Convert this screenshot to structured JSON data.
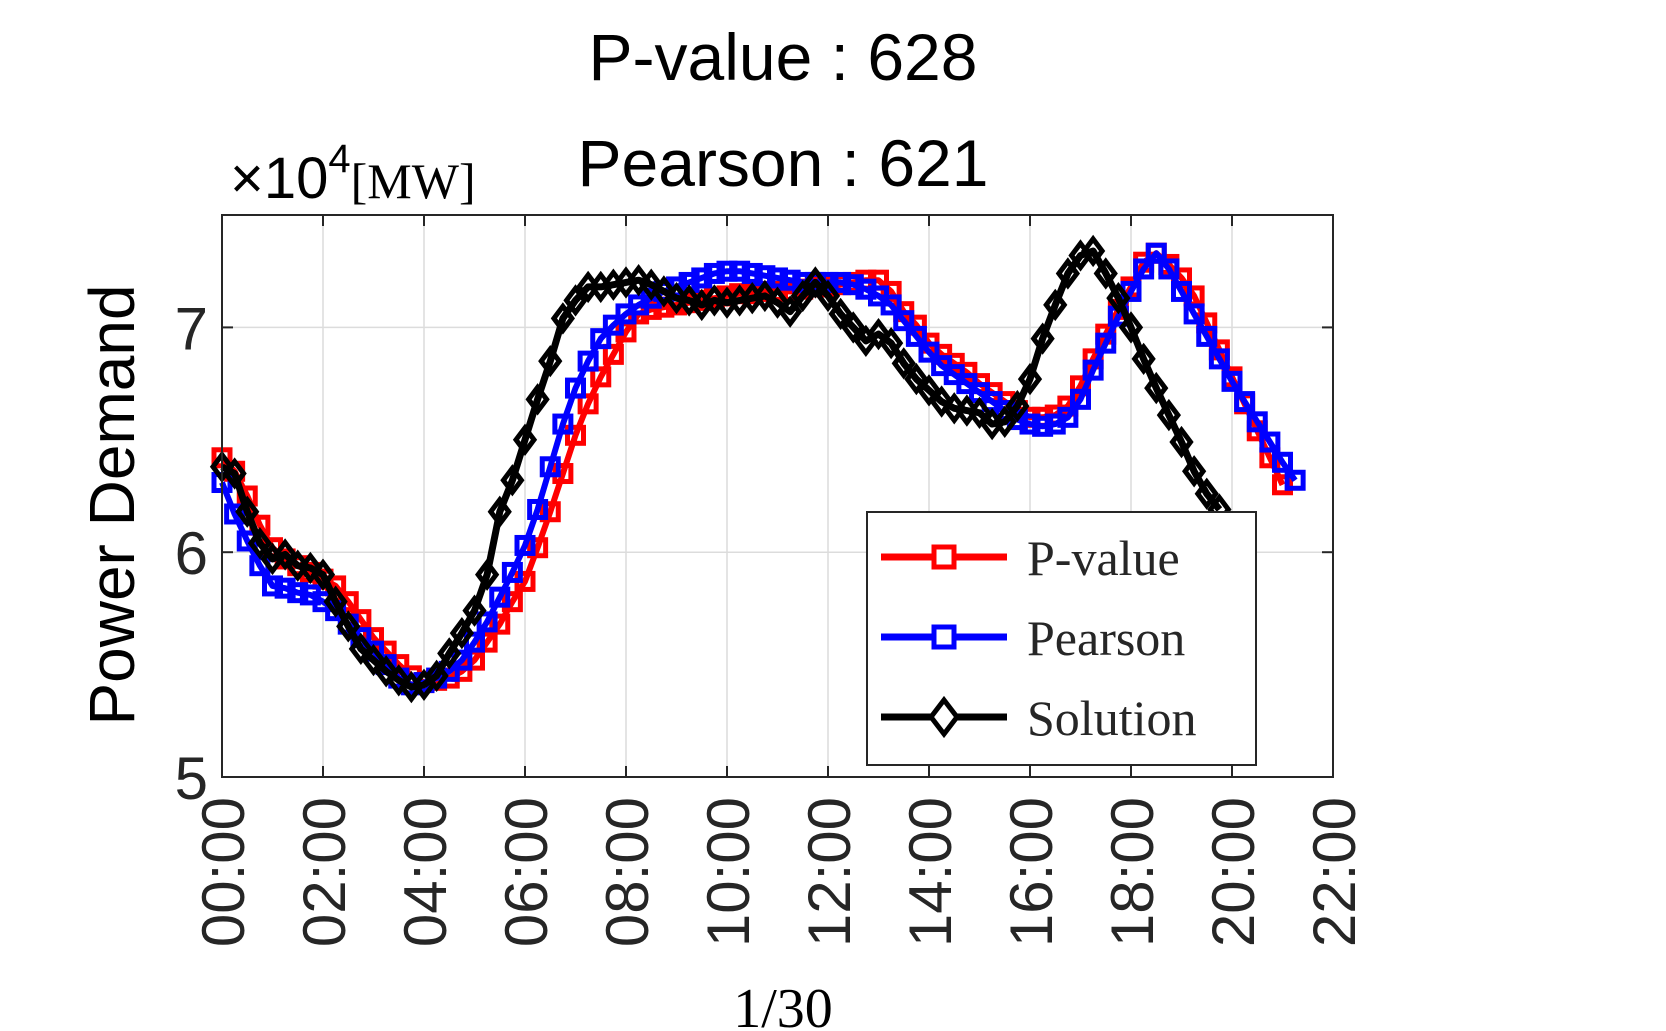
{
  "chart_data": {
    "type": "line",
    "title_lines": [
      "P-value : 628",
      "Pearson : 621"
    ],
    "ylabel": "Power Demand",
    "y_multiplier": "×10",
    "y_exponent": "4",
    "y_unit": "[MW]",
    "xlabel": "1/30",
    "ylim": [
      5,
      7.5
    ],
    "yticks": [
      5,
      6,
      7
    ],
    "xlim": [
      0,
      22
    ],
    "xticks": [
      0,
      2,
      4,
      6,
      8,
      10,
      12,
      14,
      16,
      18,
      20,
      22
    ],
    "xtick_labels": [
      "00:00",
      "02:00",
      "04:00",
      "06:00",
      "08:00",
      "10:00",
      "12:00",
      "14:00",
      "16:00",
      "18:00",
      "20:00",
      "22:00"
    ],
    "grid": true,
    "legend_position": "lower-right",
    "step_hours": 0.25,
    "series": [
      {
        "name": "P-value",
        "color": "#ff0000",
        "marker": "square",
        "values": [
          6.42,
          6.36,
          6.25,
          6.12,
          6.02,
          5.97,
          5.94,
          5.91,
          5.88,
          5.85,
          5.78,
          5.7,
          5.62,
          5.56,
          5.5,
          5.45,
          5.42,
          5.43,
          5.44,
          5.47,
          5.52,
          5.6,
          5.68,
          5.78,
          5.87,
          6.02,
          6.18,
          6.35,
          6.52,
          6.66,
          6.78,
          6.88,
          6.98,
          7.06,
          7.08,
          7.09,
          7.1,
          7.11,
          7.12,
          7.13,
          7.14,
          7.15,
          7.15,
          7.16,
          7.16,
          7.16,
          7.17,
          7.18,
          7.18,
          7.19,
          7.2,
          7.21,
          7.21,
          7.16,
          7.07,
          7.01,
          6.93,
          6.88,
          6.84,
          6.8,
          6.75,
          6.71,
          6.67,
          6.63,
          6.6,
          6.6,
          6.61,
          6.65,
          6.74,
          6.86,
          6.97,
          7.08,
          7.18,
          7.29,
          7.33,
          7.28,
          7.22,
          7.14,
          7.02,
          6.9,
          6.78,
          6.66,
          6.54,
          6.42,
          6.3
        ]
      },
      {
        "name": "Pearson",
        "color": "#0000ff",
        "marker": "square",
        "values": [
          6.31,
          6.17,
          6.05,
          5.94,
          5.85,
          5.84,
          5.82,
          5.81,
          5.78,
          5.74,
          5.68,
          5.62,
          5.56,
          5.5,
          5.44,
          5.41,
          5.42,
          5.44,
          5.47,
          5.52,
          5.6,
          5.69,
          5.8,
          5.91,
          6.03,
          6.19,
          6.38,
          6.57,
          6.73,
          6.85,
          6.95,
          7.01,
          7.06,
          7.1,
          7.13,
          7.16,
          7.18,
          7.2,
          7.22,
          7.24,
          7.25,
          7.25,
          7.24,
          7.23,
          7.22,
          7.21,
          7.2,
          7.2,
          7.2,
          7.2,
          7.19,
          7.17,
          7.14,
          7.1,
          7.03,
          6.96,
          6.89,
          6.83,
          6.79,
          6.75,
          6.71,
          6.67,
          6.63,
          6.59,
          6.57,
          6.56,
          6.57,
          6.6,
          6.68,
          6.81,
          6.93,
          7.05,
          7.16,
          7.26,
          7.33,
          7.26,
          7.16,
          7.06,
          6.96,
          6.86,
          6.76,
          6.67,
          6.58,
          6.49,
          6.4,
          6.32
        ]
      },
      {
        "name": "Solution",
        "color": "#000000",
        "marker": "diamond",
        "values": [
          6.38,
          6.35,
          6.18,
          6.04,
          5.97,
          5.99,
          5.94,
          5.93,
          5.9,
          5.78,
          5.67,
          5.57,
          5.52,
          5.47,
          5.43,
          5.4,
          5.41,
          5.45,
          5.55,
          5.64,
          5.74,
          5.9,
          6.18,
          6.32,
          6.5,
          6.68,
          6.85,
          7.04,
          7.12,
          7.18,
          7.18,
          7.19,
          7.2,
          7.21,
          7.19,
          7.16,
          7.13,
          7.12,
          7.1,
          7.12,
          7.11,
          7.12,
          7.13,
          7.14,
          7.11,
          7.07,
          7.14,
          7.2,
          7.14,
          7.06,
          7.0,
          6.94,
          6.97,
          6.93,
          6.84,
          6.77,
          6.72,
          6.67,
          6.64,
          6.63,
          6.62,
          6.57,
          6.58,
          6.65,
          6.77,
          6.95,
          7.1,
          7.24,
          7.32,
          7.34,
          7.24,
          7.13,
          7.0,
          6.86,
          6.73,
          6.61,
          6.49,
          6.36,
          6.26,
          6.19
        ]
      }
    ]
  }
}
